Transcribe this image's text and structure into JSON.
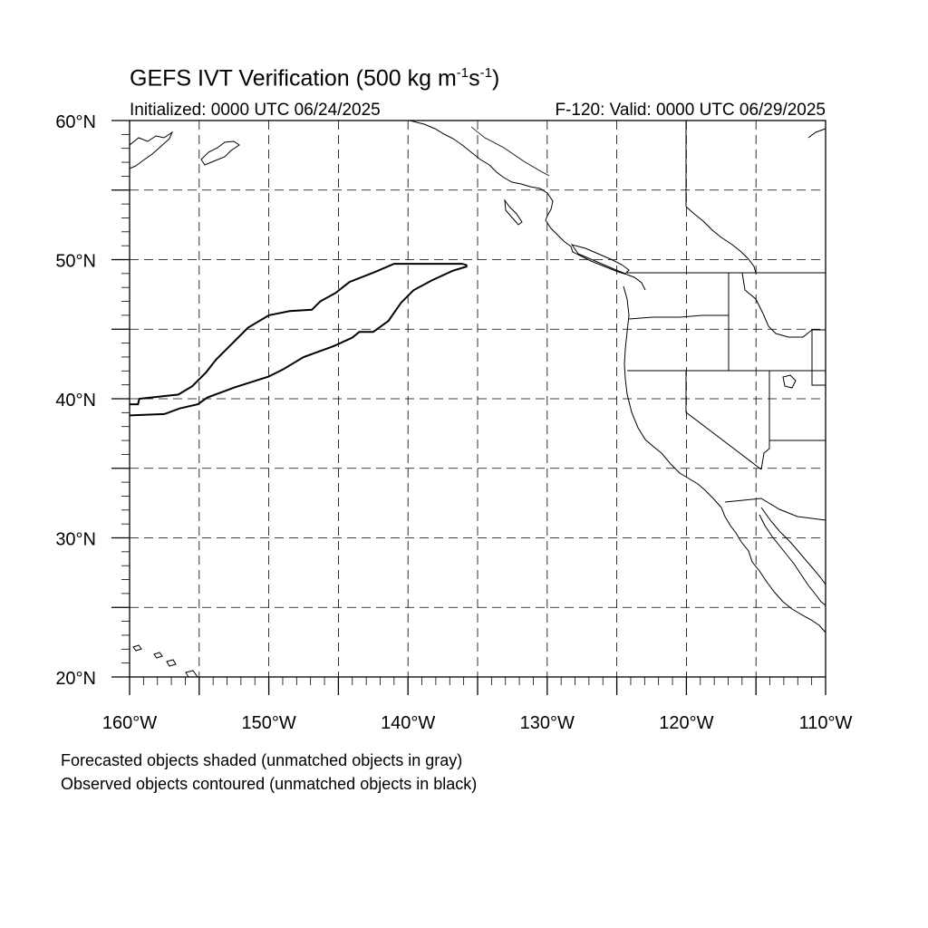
{
  "title": {
    "main": "GEFS IVT Verification (500 kg m",
    "exp1": "-1",
    "unit_s": "s",
    "exp2": "-1",
    "close": ")"
  },
  "initialized": "Initialized: 0000 UTC 06/24/2025",
  "valid": "F-120: Valid: 0000 UTC 06/29/2025",
  "map": {
    "projection": "cylindrical equidistant",
    "lon_range": [
      -160,
      -110
    ],
    "lat_range": [
      20,
      60
    ],
    "lon_grid_step": 5,
    "lat_grid_step": 5,
    "gridlines": "dashed",
    "lon_tick_labels": [
      {
        "lon": -160,
        "label": "160°W"
      },
      {
        "lon": -150,
        "label": "150°W"
      },
      {
        "lon": -140,
        "label": "140°W"
      },
      {
        "lon": -130,
        "label": "130°W"
      },
      {
        "lon": -120,
        "label": "120°W"
      },
      {
        "lon": -110,
        "label": "110°W"
      }
    ],
    "lat_tick_labels": [
      {
        "lat": 20,
        "label": "20°N"
      },
      {
        "lat": 30,
        "label": "30°N"
      },
      {
        "lat": 40,
        "label": "40°N"
      },
      {
        "lat": 50,
        "label": "50°N"
      },
      {
        "lat": 60,
        "label": "60°N"
      }
    ],
    "observed_object_outline": [
      [
        -160,
        39.6
      ],
      [
        -159.4,
        39.6
      ],
      [
        -159.3,
        40.0
      ],
      [
        -156.5,
        40.3
      ],
      [
        -155.5,
        40.9
      ],
      [
        -154.5,
        41.9
      ],
      [
        -153.8,
        42.8
      ],
      [
        -152.8,
        43.8
      ],
      [
        -151.5,
        45.1
      ],
      [
        -150,
        46.0
      ],
      [
        -148.5,
        46.3
      ],
      [
        -146.9,
        46.4
      ],
      [
        -146.3,
        47.0
      ],
      [
        -145.2,
        47.6
      ],
      [
        -144.2,
        48.4
      ],
      [
        -142.4,
        49.1
      ],
      [
        -141.0,
        49.7
      ],
      [
        -138.0,
        49.7
      ],
      [
        -136.1,
        49.7
      ],
      [
        -135.8,
        49.6
      ],
      [
        -135.8,
        49.5
      ],
      [
        -136.8,
        49.2
      ],
      [
        -138.3,
        48.5
      ],
      [
        -139.6,
        47.8
      ],
      [
        -140.5,
        46.9
      ],
      [
        -141.4,
        45.6
      ],
      [
        -142.5,
        44.8
      ],
      [
        -143.5,
        44.8
      ],
      [
        -144.0,
        44.4
      ],
      [
        -145.3,
        43.8
      ],
      [
        -147.5,
        43.0
      ],
      [
        -149.0,
        42.1
      ],
      [
        -150.0,
        41.6
      ],
      [
        -152.5,
        40.8
      ],
      [
        -154.4,
        40.1
      ],
      [
        -155.1,
        39.6
      ],
      [
        -156.4,
        39.3
      ],
      [
        -157.5,
        38.9
      ],
      [
        -160,
        38.8
      ]
    ],
    "coastline_color": "#000000",
    "contour_color": "#000000"
  },
  "notes": {
    "line1": "Forecasted objects shaded (unmatched objects in gray)",
    "line2": "Observed objects contoured (unmatched objects in black)"
  }
}
